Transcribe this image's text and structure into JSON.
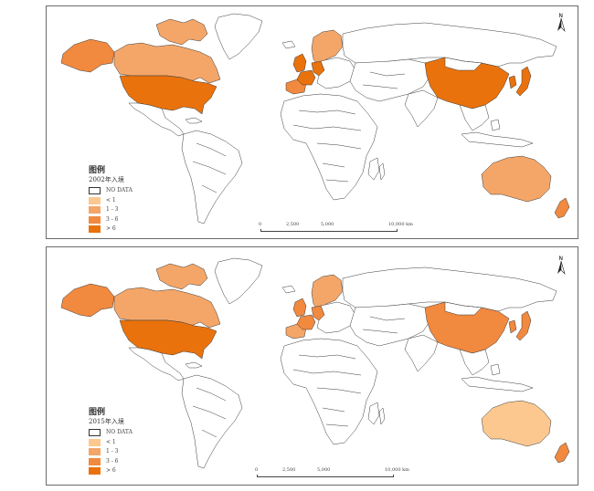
{
  "colors": {
    "no_data": "#ffffff",
    "lt1": "#fcc890",
    "c1_3": "#f4a668",
    "c3_6": "#f1893f",
    "gt6": "#e9720c",
    "border": "#3a3a3a"
  },
  "maps": [
    {
      "legend_title": "图例",
      "legend_subtitle": "2002年入境",
      "legend_items": [
        {
          "label": "NO DATA",
          "color": "#ffffff"
        },
        {
          "label": "< 1",
          "color": "#fcc890"
        },
        {
          "label": "1 - 3",
          "color": "#f4a668"
        },
        {
          "label": "3 - 6",
          "color": "#f1893f"
        },
        {
          "label": "> 6",
          "color": "#e9720c"
        }
      ],
      "scale_labels": [
        "0",
        "2,500",
        "5,000",
        "10,000 km"
      ],
      "north_label": "N",
      "regions": {
        "canada": "#f4a668",
        "usa": "#e9720c",
        "alaska": "#f1893f",
        "uk": "#e9720c",
        "france": "#e9720c",
        "germany": "#e9720c",
        "scandinavia": "#f4a668",
        "iberia": "#f1893f",
        "china": "#e9720c",
        "japan": "#e9720c",
        "korea": "#e9720c",
        "australia": "#f4a668",
        "new_zealand": "#f1893f"
      }
    },
    {
      "legend_title": "图例",
      "legend_subtitle": "2015年入境",
      "legend_items": [
        {
          "label": "NO DATA",
          "color": "#ffffff"
        },
        {
          "label": "< 1",
          "color": "#fcc890"
        },
        {
          "label": "1 - 3",
          "color": "#f4a668"
        },
        {
          "label": "3 - 6",
          "color": "#f1893f"
        },
        {
          "label": "> 6",
          "color": "#e9720c"
        }
      ],
      "scale_labels": [
        "0",
        "2,500",
        "5,000",
        "10,000 km"
      ],
      "north_label": "N",
      "regions": {
        "canada": "#f4a668",
        "usa": "#e9720c",
        "alaska": "#f1893f",
        "uk": "#f1893f",
        "france": "#f1893f",
        "germany": "#f1893f",
        "scandinavia": "#f4a668",
        "iberia": "#f4a668",
        "china": "#f1893f",
        "japan": "#f1893f",
        "korea": "#f1893f",
        "australia": "#fcc890",
        "new_zealand": "#f1893f"
      }
    }
  ]
}
